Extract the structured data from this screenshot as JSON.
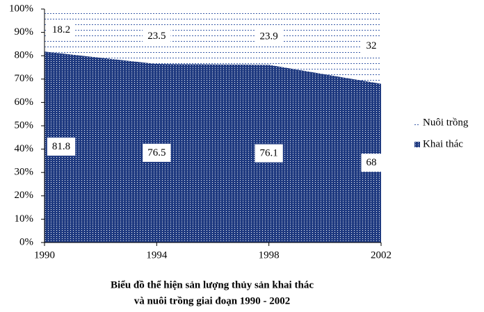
{
  "chart_data": {
    "type": "area",
    "stacked": true,
    "title": [
      "Biểu đồ thể hiện sản lượng thủy sản khai thác",
      "và nuôi trồng giai đoạn 1990 - 2002"
    ],
    "x": [
      1990,
      1994,
      1998,
      2002
    ],
    "series": [
      {
        "name": "Khai thác",
        "color": "#1f3a80",
        "values": [
          81.8,
          76.5,
          76.1,
          68
        ]
      },
      {
        "name": "Nuôi trồng",
        "color": "#3a5ca8",
        "values": [
          18.2,
          23.5,
          23.9,
          32
        ]
      }
    ],
    "xlim": [
      1990,
      2002
    ],
    "xticks": [
      1990,
      1994,
      1998,
      2002
    ],
    "ylim": [
      0,
      100
    ],
    "yticks": [
      {
        "value": 0,
        "label": "0%"
      },
      {
        "value": 10,
        "label": "10%"
      },
      {
        "value": 20,
        "label": "20%"
      },
      {
        "value": 30,
        "label": "30%"
      },
      {
        "value": 40,
        "label": "40%"
      },
      {
        "value": 50,
        "label": "50%"
      },
      {
        "value": 60,
        "label": "60%"
      },
      {
        "value": 70,
        "label": "70%"
      },
      {
        "value": 80,
        "label": "80%"
      },
      {
        "value": 90,
        "label": "90%"
      },
      {
        "value": 100,
        "label": "100%"
      }
    ],
    "legend": "right"
  }
}
